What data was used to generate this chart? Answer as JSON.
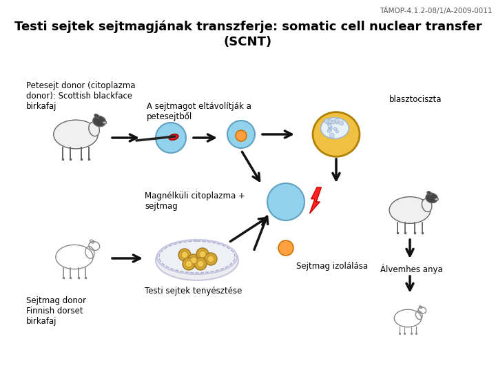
{
  "tamop_text": "TÁMOP-4.1.2-08/1/A-2009-0011",
  "title_line1": "Testi sejtek sejtmagjának transzferje: somatic cell nuclear transfer",
  "title_line2": "(SCNT)",
  "bg_color": "#ffffff",
  "text_color": "#000000",
  "label_petesejt": "Petesejt donor (citoplazma\ndonor): Scottish blackface\nbirkafaj",
  "label_sejtmag_remove": "A sejtmagot eltávolítják a\npetesejtből",
  "label_blasztociszta": "blasztociszta",
  "label_magnelkuli": "Magnélküli citoplazma +\nsejtmag",
  "label_sejtmag_izolalasa": "Sejtmag izolálása",
  "label_alvemhes": "Álvemhes anya",
  "label_sejtmag_donor": "Sejtmag donor\nFinnish dorset\nbirkafaj",
  "label_testi_sejtek": "Testi sejtek tenyésztése"
}
